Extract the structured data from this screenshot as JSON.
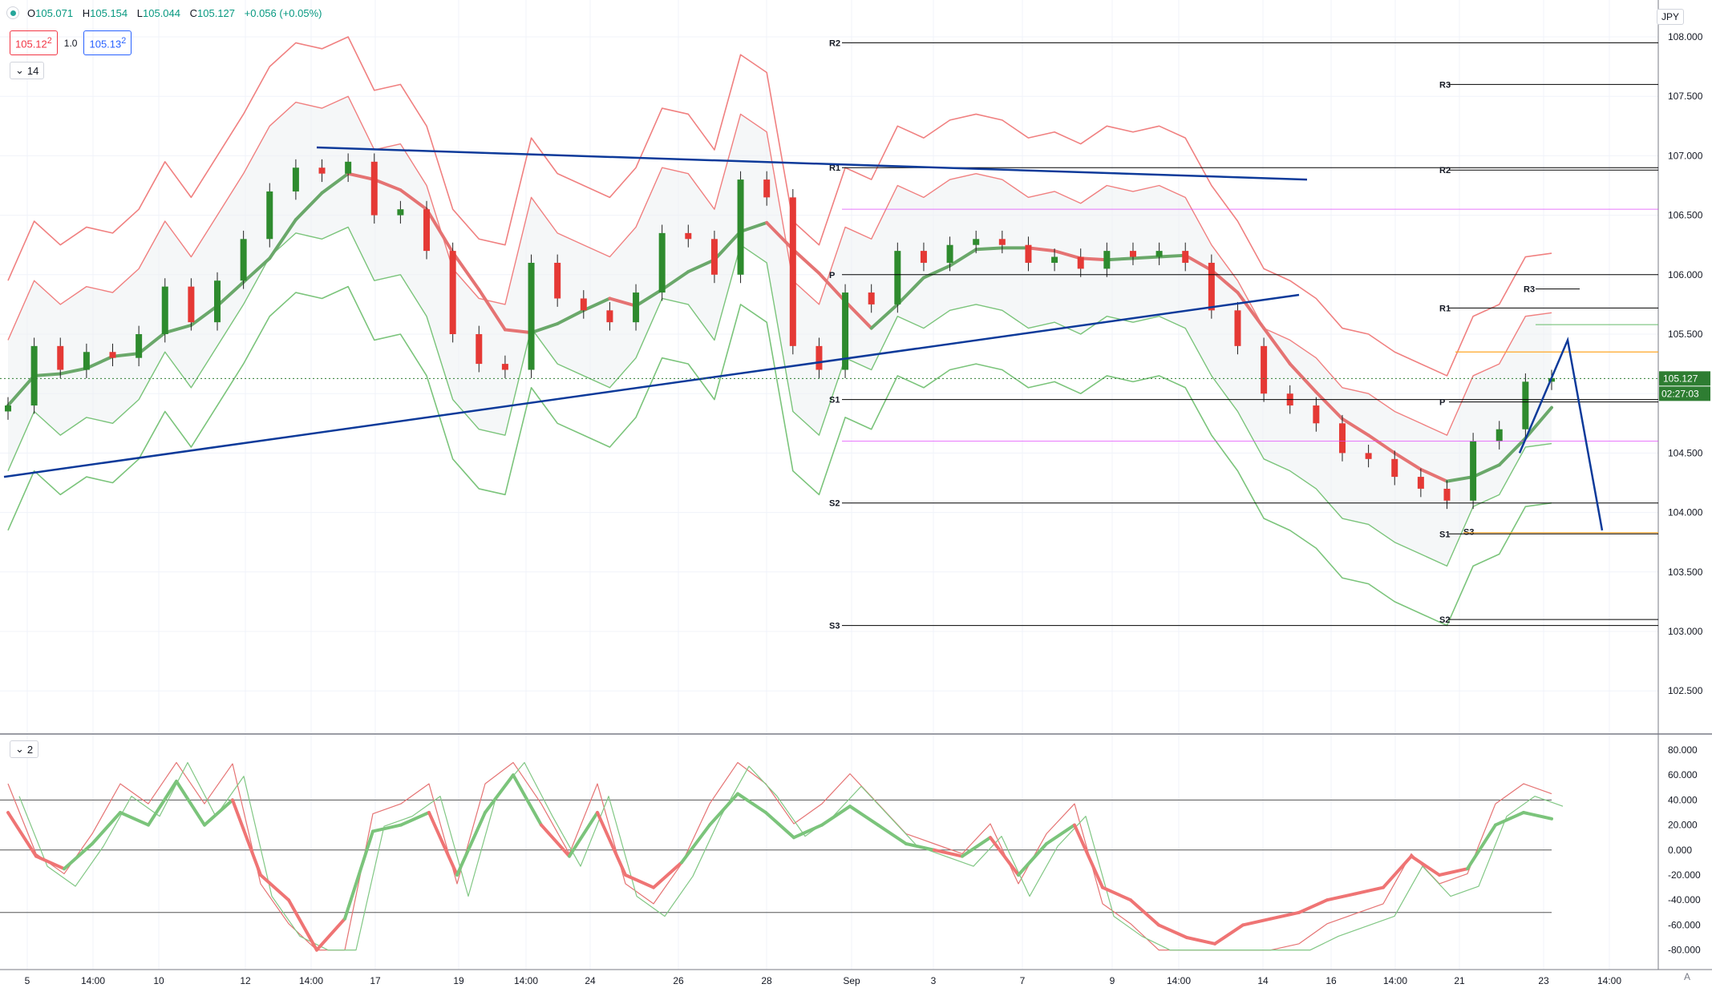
{
  "legend": {
    "open": "105.071",
    "high": "105.154",
    "low": "105.044",
    "close": "105.127",
    "change": "+0.056 (+0.05%)"
  },
  "trade": {
    "sell": "105.12",
    "sell_sup": "2",
    "spread": "1.0",
    "buy": "105.13",
    "buy_sup": "2"
  },
  "indicators": {
    "main_collapse": "14",
    "osc_collapse": "2"
  },
  "currency": "JPY",
  "corner_label": "A",
  "price_axis": {
    "ticks": [
      "108.000",
      "107.500",
      "107.000",
      "106.500",
      "106.000",
      "105.500",
      "105.000",
      "104.500",
      "104.000",
      "103.500",
      "103.000",
      "102.500"
    ],
    "last_price": "105.127",
    "countdown": "02:27:03"
  },
  "osc_axis": {
    "ticks": [
      "80.000",
      "60.000",
      "40.000",
      "20.000",
      "0.000",
      "-20.000",
      "-40.000",
      "-60.000",
      "-80.000"
    ]
  },
  "time_axis": [
    "5",
    "14:00",
    "10",
    "12",
    "14:00",
    "17",
    "19",
    "14:00",
    "24",
    "26",
    "28",
    "Sep",
    "3",
    "7",
    "9",
    "14:00",
    "14",
    "16",
    "14:00",
    "21",
    "23",
    "14:00"
  ],
  "pivots_left": {
    "R2": "R2",
    "R1": "R1",
    "P": "P",
    "S1": "S1",
    "S2": "S2",
    "S3": "S3"
  },
  "pivots_right": {
    "R3": "R3",
    "R2": "R2",
    "R1": "R1",
    "P": "P",
    "S1": "S1",
    "S2": "S2",
    "S3": "S3",
    "R3b": "R3"
  },
  "colors": {
    "up": "#2e8b2e",
    "down": "#e53935",
    "trend": "#0d3a9a",
    "pivot": "#000000",
    "band_red": "#f08080",
    "band_green": "#7bc47b",
    "magenta": "#e040fb",
    "bid": "#2962ff"
  },
  "chart_data": {
    "type": "candlestick",
    "symbol_currency": "JPY",
    "ylim": [
      102.2,
      108.1
    ],
    "close_path": [
      104.9,
      105.4,
      105.2,
      105.35,
      105.3,
      105.5,
      105.9,
      105.6,
      105.95,
      106.3,
      106.7,
      106.9,
      106.85,
      106.95,
      106.5,
      106.55,
      106.2,
      105.5,
      105.25,
      105.2,
      106.1,
      105.8,
      105.7,
      105.6,
      105.85,
      106.35,
      106.3,
      106.0,
      106.8,
      106.65,
      105.4,
      105.2,
      105.85,
      105.75,
      106.2,
      106.1,
      106.25,
      106.3,
      106.25,
      106.1,
      106.15,
      106.05,
      106.2,
      106.15,
      106.2,
      106.1,
      105.7,
      105.4,
      105.0,
      104.9,
      104.75,
      104.5,
      104.45,
      104.3,
      104.2,
      104.1,
      104.6,
      104.7,
      105.1,
      105.13
    ],
    "pivots_left": {
      "R2": 107.95,
      "R1": 106.9,
      "P": 106.0,
      "S1": 104.95,
      "S2": 104.08,
      "S3": 103.05
    },
    "pivots_right": {
      "R3": 107.6,
      "R2": 106.88,
      "R1": 105.72,
      "P": 104.93,
      "S1": 103.82,
      "S2": 103.1
    },
    "oscillator": {
      "type": "line",
      "ylim": [
        -90,
        85
      ],
      "levels": [
        40,
        0,
        -50
      ],
      "main": [
        30,
        -5,
        -15,
        5,
        30,
        20,
        55,
        20,
        40,
        -20,
        -40,
        -80,
        -55,
        15,
        20,
        30,
        -20,
        30,
        60,
        20,
        -5,
        30,
        -20,
        -30,
        -10,
        20,
        45,
        30,
        10,
        20,
        35,
        20,
        5,
        0,
        -5,
        10,
        -20,
        5,
        20,
        -30,
        -40,
        -60,
        -70,
        -75,
        -60,
        -55,
        -50,
        -40,
        -35,
        -30,
        -5,
        -20,
        -15,
        20,
        30,
        25
      ]
    }
  }
}
